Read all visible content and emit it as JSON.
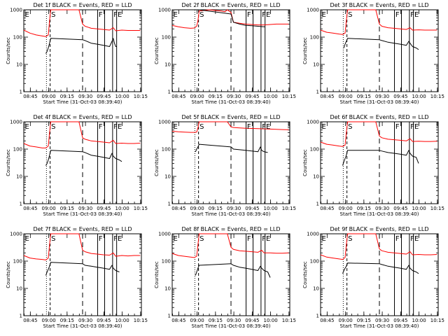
{
  "chart_data": [
    {
      "type": "line",
      "title": "Det 1f BLACK = Events, RED = LLD",
      "xlabel": "Start Time (31-Oct-03 08:39:40)",
      "ylabel": "Counts/sec",
      "yscale": "log",
      "ylim": [
        1,
        1000
      ],
      "xticks": [
        "08:45",
        "09:00",
        "09:15",
        "09:30",
        "09:45",
        "10:00",
        "10:15"
      ],
      "yticks": [
        "1",
        "10",
        "100",
        "1000"
      ],
      "markers": [
        "E",
        "S",
        "F",
        "F",
        "E"
      ],
      "series": [
        {
          "color": "#ff0000",
          "x": [
            0,
            5,
            10,
            15,
            18,
            20,
            21,
            22,
            45,
            48,
            50,
            55,
            60,
            65,
            70,
            73,
            75,
            80,
            85,
            90,
            95
          ],
          "y": [
            180,
            140,
            120,
            110,
            105,
            120,
            400,
            1000,
            1000,
            300,
            250,
            210,
            200,
            190,
            180,
            220,
            170,
            180,
            175,
            175,
            175
          ]
        },
        {
          "color": "#000000",
          "x": [
            18,
            19,
            20,
            21,
            22,
            48,
            50,
            55,
            60,
            65,
            70,
            72,
            73,
            74,
            75,
            76
          ],
          "y": [
            25,
            30,
            40,
            60,
            90,
            80,
            75,
            60,
            55,
            50,
            45,
            70,
            90,
            60,
            45,
            45
          ]
        }
      ]
    },
    {
      "type": "line",
      "title": "Det 2f BLACK = Events, RED = LLD",
      "xlabel": "Start Time (31-Oct-03 08:39:40)",
      "ylabel": "Counts/sec",
      "yscale": "log",
      "ylim": [
        1,
        1000
      ],
      "xticks": [
        "08:45",
        "09:00",
        "09:15",
        "09:30",
        "09:45",
        "10:00",
        "10:15"
      ],
      "yticks": [
        "1",
        "10",
        "100",
        "1000"
      ],
      "markers": [
        "E",
        "S",
        "F",
        "F",
        "E"
      ],
      "series": [
        {
          "color": "#ff0000",
          "x": [
            0,
            5,
            10,
            15,
            18,
            20,
            21,
            22,
            30,
            35,
            40,
            43,
            45,
            48,
            50,
            55,
            60,
            65,
            70,
            75,
            80,
            85,
            90,
            95
          ],
          "y": [
            270,
            240,
            220,
            210,
            215,
            250,
            400,
            900,
            1000,
            950,
            900,
            850,
            1000,
            800,
            350,
            320,
            300,
            290,
            280,
            280,
            290,
            300,
            300,
            300
          ]
        },
        {
          "color": "#000000",
          "x": [
            21,
            22,
            48,
            50,
            55,
            60,
            65,
            70,
            75,
            76
          ],
          "y": [
            1000,
            1000,
            700,
            350,
            300,
            270,
            260,
            250,
            240,
            240
          ]
        }
      ]
    },
    {
      "type": "line",
      "title": "Det 3f BLACK = Events, RED = LLD",
      "xlabel": "Start Time (31-Oct-03 08:39:40)",
      "ylabel": "Counts/sec",
      "yscale": "log",
      "ylim": [
        1,
        1000
      ],
      "xticks": [
        "08:45",
        "09:00",
        "09:15",
        "09:30",
        "09:45",
        "10:00",
        "10:15"
      ],
      "yticks": [
        "1",
        "10",
        "100",
        "1000"
      ],
      "markers": [
        "E",
        "S",
        "F",
        "F",
        "E"
      ],
      "series": [
        {
          "color": "#ff0000",
          "x": [
            0,
            5,
            10,
            15,
            18,
            20,
            21,
            22,
            45,
            48,
            50,
            55,
            60,
            65,
            70,
            73,
            75,
            80,
            85,
            90,
            95
          ],
          "y": [
            180,
            150,
            140,
            130,
            125,
            140,
            400,
            1000,
            1000,
            300,
            250,
            220,
            210,
            200,
            190,
            220,
            180,
            185,
            180,
            180,
            180
          ]
        },
        {
          "color": "#000000",
          "x": [
            19,
            20,
            21,
            22,
            48,
            50,
            55,
            60,
            65,
            70,
            72,
            73,
            75,
            78,
            80
          ],
          "y": [
            40,
            55,
            70,
            90,
            80,
            75,
            65,
            60,
            55,
            50,
            70,
            60,
            45,
            40,
            35
          ]
        }
      ]
    },
    {
      "type": "line",
      "title": "Det 4f BLACK = Events, RED = LLD",
      "xlabel": "Start Time (31-Oct-03 08:39:40)",
      "ylabel": "Counts/sec",
      "yscale": "log",
      "ylim": [
        1,
        1000
      ],
      "xticks": [
        "08:45",
        "09:00",
        "09:15",
        "09:30",
        "09:45",
        "10:00",
        "10:15"
      ],
      "yticks": [
        "1",
        "10",
        "100",
        "1000"
      ],
      "markers": [
        "E",
        "S",
        "F",
        "F",
        "E"
      ],
      "series": [
        {
          "color": "#ff0000",
          "x": [
            0,
            5,
            10,
            15,
            18,
            20,
            21,
            22,
            45,
            48,
            50,
            55,
            60,
            65,
            70,
            73,
            75,
            80,
            85,
            90,
            95
          ],
          "y": [
            160,
            130,
            120,
            110,
            110,
            130,
            400,
            1000,
            1000,
            260,
            230,
            200,
            190,
            180,
            170,
            210,
            160,
            165,
            160,
            160,
            165
          ]
        },
        {
          "color": "#000000",
          "x": [
            18,
            19,
            20,
            21,
            22,
            48,
            50,
            55,
            60,
            65,
            70,
            72,
            73,
            75,
            78,
            80
          ],
          "y": [
            25,
            30,
            40,
            60,
            90,
            80,
            75,
            60,
            55,
            50,
            45,
            70,
            55,
            45,
            40,
            35
          ]
        }
      ]
    },
    {
      "type": "line",
      "title": "Det 5f BLACK = Events, RED = LLD",
      "xlabel": "Start Time (31-Oct-03 08:39:40)",
      "ylabel": "Counts/sec",
      "yscale": "log",
      "ylim": [
        1,
        1000
      ],
      "xticks": [
        "08:45",
        "09:00",
        "09:15",
        "09:30",
        "09:45",
        "10:00",
        "10:15"
      ],
      "yticks": [
        "1",
        "10",
        "100",
        "1000"
      ],
      "markers": [
        "E",
        "S",
        "F",
        "F",
        "E"
      ],
      "series": [
        {
          "color": "#ff0000",
          "x": [
            0,
            5,
            10,
            15,
            18,
            20,
            21,
            22,
            45,
            48,
            50,
            55,
            60,
            65,
            70,
            75,
            80,
            85,
            90,
            95
          ],
          "y": [
            450,
            430,
            420,
            410,
            410,
            420,
            600,
            1000,
            1000,
            650,
            620,
            600,
            580,
            570,
            560,
            550,
            540,
            530,
            520,
            510
          ]
        },
        {
          "color": "#000000",
          "x": [
            19,
            20,
            21,
            22,
            48,
            50,
            55,
            60,
            65,
            70,
            72,
            73,
            75,
            78
          ],
          "y": [
            80,
            100,
            120,
            150,
            120,
            100,
            95,
            90,
            85,
            80,
            120,
            90,
            80,
            75
          ]
        }
      ]
    },
    {
      "type": "line",
      "title": "Det 6f BLACK = Events, RED = LLD",
      "xlabel": "Start Time (31-Oct-03 08:39:40)",
      "ylabel": "Counts/sec",
      "yscale": "log",
      "ylim": [
        1,
        1000
      ],
      "xticks": [
        "08:45",
        "09:00",
        "09:15",
        "09:30",
        "09:45",
        "10:00",
        "10:15"
      ],
      "yticks": [
        "1",
        "10",
        "100",
        "1000"
      ],
      "markers": [
        "E",
        "S",
        "F",
        "F",
        "E"
      ],
      "series": [
        {
          "color": "#ff0000",
          "x": [
            0,
            5,
            10,
            15,
            18,
            20,
            21,
            22,
            45,
            48,
            50,
            55,
            60,
            65,
            70,
            73,
            75,
            80,
            85,
            90,
            95
          ],
          "y": [
            180,
            150,
            140,
            130,
            125,
            140,
            400,
            1000,
            1000,
            300,
            260,
            230,
            220,
            210,
            200,
            240,
            190,
            195,
            190,
            190,
            195
          ]
        },
        {
          "color": "#000000",
          "x": [
            18,
            19,
            20,
            21,
            22,
            48,
            50,
            55,
            60,
            65,
            70,
            72,
            73,
            75,
            78,
            80
          ],
          "y": [
            25,
            35,
            45,
            60,
            90,
            90,
            85,
            75,
            70,
            65,
            60,
            90,
            70,
            55,
            50,
            30
          ]
        }
      ]
    },
    {
      "type": "line",
      "title": "Det 7f BLACK = Events, RED = LLD",
      "xlabel": "Start Time (31-Oct-03 08:39:40)",
      "ylabel": "Counts/sec",
      "yscale": "log",
      "ylim": [
        1,
        1000
      ],
      "xticks": [
        "08:45",
        "09:00",
        "09:15",
        "09:30",
        "09:45",
        "10:00",
        "10:15"
      ],
      "yticks": [
        "1",
        "10",
        "100",
        "1000"
      ],
      "markers": [
        "E",
        "S",
        "F",
        "F",
        "E"
      ],
      "series": [
        {
          "color": "#ff0000",
          "x": [
            0,
            5,
            10,
            15,
            18,
            20,
            21,
            22,
            45,
            48,
            50,
            55,
            60,
            65,
            70,
            73,
            75,
            80,
            85,
            90,
            95
          ],
          "y": [
            160,
            130,
            120,
            115,
            110,
            130,
            400,
            1000,
            1000,
            250,
            220,
            190,
            180,
            170,
            165,
            200,
            150,
            160,
            155,
            160,
            160
          ]
        },
        {
          "color": "#000000",
          "x": [
            18,
            19,
            20,
            21,
            22,
            48,
            50,
            55,
            60,
            65,
            70,
            72,
            73,
            75,
            78
          ],
          "y": [
            30,
            40,
            50,
            65,
            90,
            80,
            70,
            65,
            60,
            55,
            50,
            70,
            55,
            45,
            40
          ]
        }
      ]
    },
    {
      "type": "line",
      "title": "Det 8f BLACK = Events, RED = LLD",
      "xlabel": "Start Time (31-Oct-03 08:39:40)",
      "ylabel": "Counts/sec",
      "yscale": "log",
      "ylim": [
        1,
        1000
      ],
      "xticks": [
        "08:45",
        "09:00",
        "09:15",
        "09:30",
        "09:45",
        "10:00",
        "10:15"
      ],
      "yticks": [
        "1",
        "10",
        "100",
        "1000"
      ],
      "markers": [
        "E",
        "S",
        "F",
        "F",
        "E"
      ],
      "series": [
        {
          "color": "#ff0000",
          "x": [
            0,
            5,
            10,
            15,
            18,
            20,
            21,
            22,
            45,
            48,
            50,
            55,
            60,
            65,
            70,
            73,
            75,
            80,
            85,
            90,
            95
          ],
          "y": [
            190,
            160,
            150,
            140,
            135,
            150,
            400,
            1000,
            1000,
            320,
            270,
            240,
            230,
            220,
            210,
            250,
            200,
            200,
            195,
            195,
            200
          ]
        },
        {
          "color": "#000000",
          "x": [
            19,
            20,
            21,
            22,
            48,
            50,
            55,
            60,
            65,
            70,
            72,
            73,
            75,
            78,
            80
          ],
          "y": [
            30,
            40,
            55,
            70,
            80,
            70,
            60,
            55,
            50,
            45,
            65,
            55,
            45,
            40,
            25
          ]
        }
      ]
    },
    {
      "type": "line",
      "title": "Det 9f BLACK = Events, RED = LLD",
      "xlabel": "Start Time (31-Oct-03 08:39:40)",
      "ylabel": "Counts/sec",
      "yscale": "log",
      "ylim": [
        1,
        1000
      ],
      "xticks": [
        "08:45",
        "09:00",
        "09:15",
        "09:30",
        "09:45",
        "10:00",
        "10:15"
      ],
      "yticks": [
        "1",
        "10",
        "100",
        "1000"
      ],
      "markers": [
        "E",
        "S",
        "F",
        "F",
        "E"
      ],
      "series": [
        {
          "color": "#ff0000",
          "x": [
            0,
            5,
            10,
            15,
            18,
            20,
            21,
            22,
            45,
            48,
            50,
            55,
            60,
            65,
            70,
            73,
            75,
            80,
            85,
            90,
            95
          ],
          "y": [
            170,
            140,
            130,
            120,
            115,
            135,
            400,
            1000,
            1000,
            280,
            240,
            210,
            200,
            190,
            180,
            220,
            170,
            175,
            170,
            170,
            175
          ]
        },
        {
          "color": "#000000",
          "x": [
            18,
            19,
            20,
            21,
            22,
            48,
            50,
            55,
            60,
            65,
            70,
            72,
            73,
            75,
            78,
            80
          ],
          "y": [
            35,
            45,
            55,
            65,
            85,
            80,
            75,
            65,
            60,
            55,
            50,
            70,
            55,
            45,
            40,
            35
          ]
        }
      ]
    }
  ]
}
